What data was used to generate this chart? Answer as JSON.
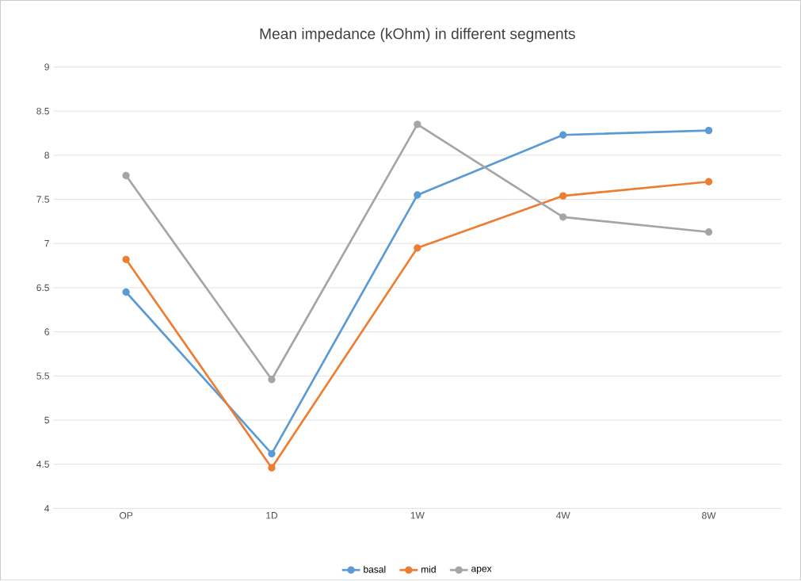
{
  "chart_data": {
    "type": "line",
    "title": "Mean impedance (kOhm) in different segments",
    "categories": [
      "OP",
      "1D",
      "1W",
      "4W",
      "8W"
    ],
    "series": [
      {
        "name": "basal",
        "color": "#5b9bd5",
        "values": [
          6.45,
          4.62,
          7.55,
          8.23,
          8.28
        ]
      },
      {
        "name": "mid",
        "color": "#ed7d31",
        "values": [
          6.82,
          4.46,
          6.95,
          7.54,
          7.7
        ]
      },
      {
        "name": "apex",
        "color": "#a5a5a5",
        "values": [
          7.77,
          5.46,
          8.35,
          7.3,
          7.13
        ]
      }
    ],
    "ylim": [
      4,
      9
    ],
    "yticks": [
      4,
      4.5,
      5,
      5.5,
      6,
      6.5,
      7,
      7.5,
      8,
      8.5,
      9
    ],
    "grid": "y",
    "legend": "bottom",
    "marker": "circle",
    "line_style": "solid"
  }
}
